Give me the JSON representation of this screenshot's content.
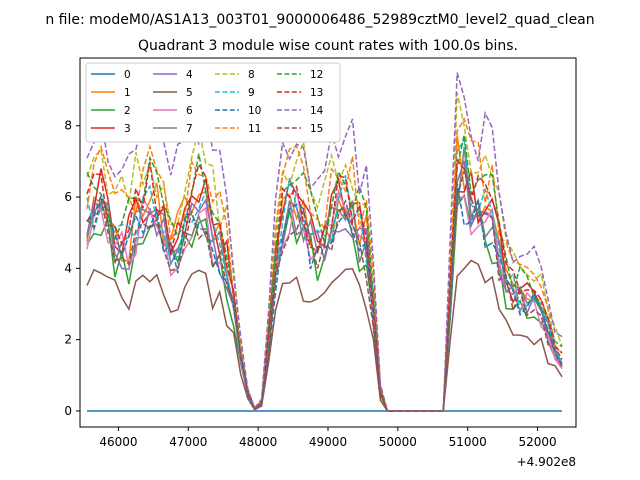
{
  "chart_data": {
    "type": "line",
    "suptitle": "n file: modeM0/AS1A13_003T01_9000006486_52989cztM0_level2_quad_clean",
    "title": "Quadrant 3 module wise count rates with 100.0s bins.",
    "xlabel": "",
    "ylabel": "",
    "x_offset_label": "+4.902e8",
    "xlim": [
      45450,
      52550
    ],
    "ylim": [
      -0.45,
      9.9
    ],
    "xticks": [
      46000,
      47000,
      48000,
      49000,
      50000,
      51000,
      52000
    ],
    "xtick_labels": [
      "46000",
      "47000",
      "48000",
      "49000",
      "50000",
      "51000",
      "52000"
    ],
    "yticks": [
      0,
      2,
      4,
      6,
      8
    ],
    "ytick_labels": [
      "0",
      "2",
      "4",
      "6",
      "8"
    ],
    "grid": false,
    "legend_position": "top-left",
    "x_range": [
      45550,
      52350
    ],
    "x_step": 100,
    "series": [
      {
        "name": "0",
        "color": "#1f77b4",
        "dash": "solid",
        "base": 0,
        "scale": 0.0,
        "seed": 1
      },
      {
        "name": "1",
        "color": "#ff7f0e",
        "dash": "solid",
        "base": 5.4,
        "scale": 1.06,
        "seed": 2
      },
      {
        "name": "2",
        "color": "#2ca02c",
        "dash": "solid",
        "base": 4.6,
        "scale": 0.92,
        "seed": 3
      },
      {
        "name": "3",
        "color": "#d62728",
        "dash": "solid",
        "base": 5.5,
        "scale": 1.08,
        "seed": 4
      },
      {
        "name": "4",
        "color": "#9467bd",
        "dash": "solid",
        "base": 5.0,
        "scale": 0.98,
        "seed": 5
      },
      {
        "name": "5",
        "color": "#8c564b",
        "dash": "solid",
        "base": 3.4,
        "scale": 0.68,
        "seed": 6
      },
      {
        "name": "6",
        "color": "#e377c2",
        "dash": "solid",
        "base": 5.0,
        "scale": 0.98,
        "seed": 7
      },
      {
        "name": "7",
        "color": "#7f7f7f",
        "dash": "solid",
        "base": 5.1,
        "scale": 1.0,
        "seed": 8
      },
      {
        "name": "8",
        "color": "#bcbd22",
        "dash": "dashed",
        "base": 6.5,
        "scale": 1.22,
        "seed": 9
      },
      {
        "name": "9",
        "color": "#17becf",
        "dash": "dashed",
        "base": 5.3,
        "scale": 1.04,
        "seed": 10
      },
      {
        "name": "10",
        "color": "#1f77b4",
        "dash": "dashed",
        "base": 4.9,
        "scale": 0.97,
        "seed": 11
      },
      {
        "name": "11",
        "color": "#ff7f0e",
        "dash": "dashed",
        "base": 6.2,
        "scale": 1.18,
        "seed": 12
      },
      {
        "name": "12",
        "color": "#2ca02c",
        "dash": "dashed",
        "base": 5.9,
        "scale": 1.14,
        "seed": 13
      },
      {
        "name": "13",
        "color": "#d62728",
        "dash": "dashed",
        "base": 5.6,
        "scale": 1.1,
        "seed": 14
      },
      {
        "name": "14",
        "color": "#9467bd",
        "dash": "dashed",
        "base": 7.2,
        "scale": 1.32,
        "seed": 15
      },
      {
        "name": "15",
        "color": "#8c564b",
        "dash": "dashed",
        "base": 4.8,
        "scale": 0.94,
        "seed": 16
      }
    ],
    "profile": [
      {
        "x": 45550,
        "y": 1.0
      },
      {
        "x": 47500,
        "y": 1.0
      },
      {
        "x": 47600,
        "y": 0.75
      },
      {
        "x": 47700,
        "y": 0.4
      },
      {
        "x": 47800,
        "y": 0.15
      },
      {
        "x": 47900,
        "y": 0.02
      },
      {
        "x": 48000,
        "y": 0.0
      },
      {
        "x": 48100,
        "y": 0.1
      },
      {
        "x": 48200,
        "y": 0.75
      },
      {
        "x": 48300,
        "y": 1.0
      },
      {
        "x": 49600,
        "y": 1.0
      },
      {
        "x": 49700,
        "y": 0.2
      },
      {
        "x": 49800,
        "y": 0.0
      },
      {
        "x": 50700,
        "y": 0.0
      },
      {
        "x": 50800,
        "y": 1.2
      },
      {
        "x": 50900,
        "y": 1.55
      },
      {
        "x": 51000,
        "y": 1.3
      },
      {
        "x": 51200,
        "y": 1.0
      },
      {
        "x": 52350,
        "y": 0.3
      }
    ]
  }
}
